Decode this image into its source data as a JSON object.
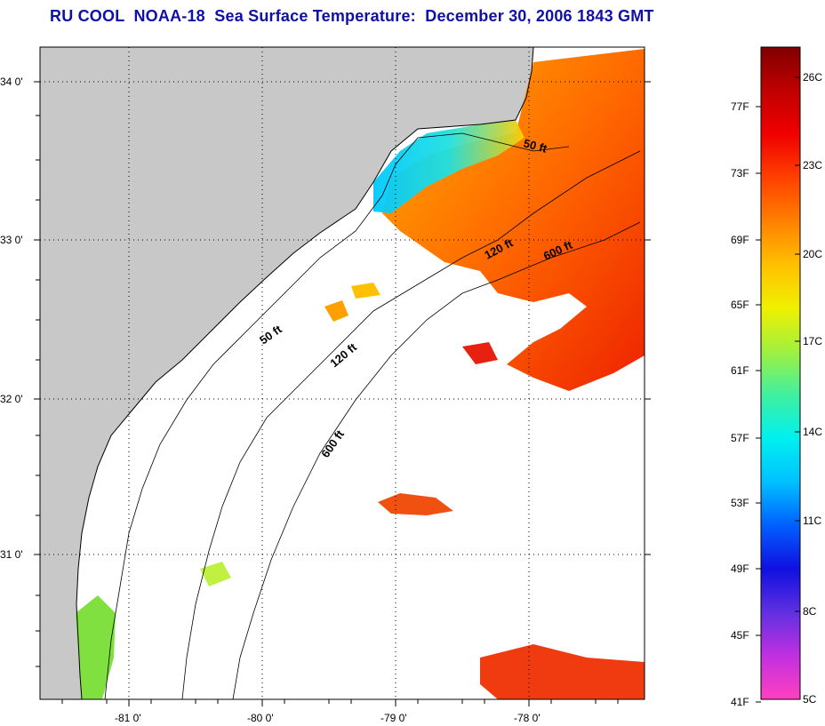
{
  "title": "RU COOL  NOAA-18  Sea Surface Temperature:  December 30, 2006 1843 GMT",
  "colors": {
    "title": "#1010a8",
    "land": "#c8c8c8",
    "no_data": "#ffffff",
    "coastline": "#000000",
    "grid": "#000000"
  },
  "map": {
    "lon_labels": [
      "-81 0'",
      "-80 0'",
      "-79 0'",
      "-78 0'"
    ],
    "lat_labels": [
      "34 0'",
      "33 0'",
      "32 0'",
      "31 0'"
    ],
    "grid": "dotted",
    "contours": [
      {
        "label": "50 ft",
        "name": "contour-50ft-north"
      },
      {
        "label": "120 ft",
        "name": "contour-120ft-north"
      },
      {
        "label": "600 ft",
        "name": "contour-600ft-north"
      },
      {
        "label": "50 ft",
        "name": "contour-50ft-south"
      },
      {
        "label": "120 ft",
        "name": "contour-120ft-south"
      },
      {
        "label": "600 ft",
        "name": "contour-600ft-south"
      }
    ]
  },
  "colorbar": {
    "fahrenheit_labels": [
      "77F",
      "73F",
      "69F",
      "65F",
      "61F",
      "57F",
      "53F",
      "49F",
      "45F",
      "41F"
    ],
    "celsius_labels": [
      "26C",
      "23C",
      "20C",
      "17C",
      "14C",
      "11C",
      "8C",
      "5C"
    ],
    "color_stops": [
      "#ff40c0",
      "#c030e0",
      "#6030e0",
      "#1010e0",
      "#0060ff",
      "#00c0ff",
      "#00f0f0",
      "#40f0a0",
      "#a0f040",
      "#f0f000",
      "#ffc000",
      "#ff8000",
      "#ff4000",
      "#f00000",
      "#c00000",
      "#800000"
    ]
  }
}
